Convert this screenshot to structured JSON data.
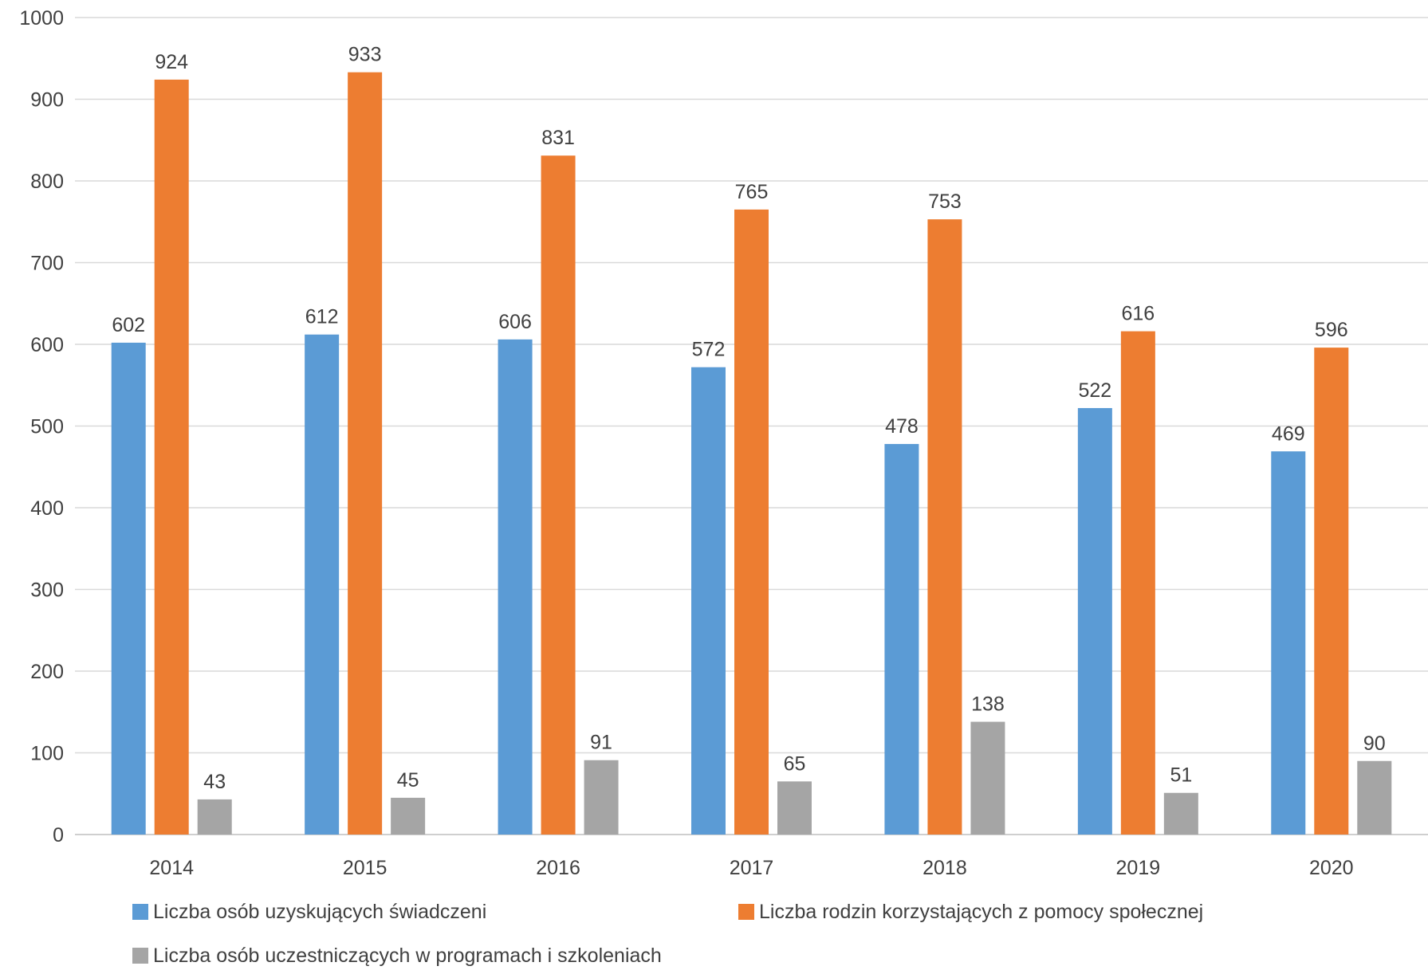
{
  "chart_data": {
    "type": "bar",
    "title": "",
    "xlabel": "",
    "ylabel": "",
    "categories": [
      "2014",
      "2015",
      "2016",
      "2017",
      "2018",
      "2019",
      "2020"
    ],
    "series": [
      {
        "name": "Liczba osób uzyskujących świadczeni",
        "color": "#5B9BD5",
        "values": [
          602,
          612,
          606,
          572,
          478,
          522,
          469
        ]
      },
      {
        "name": "Liczba rodzin korzystających z pomocy społecznej",
        "color": "#ED7D31",
        "values": [
          924,
          933,
          831,
          765,
          753,
          616,
          596
        ]
      },
      {
        "name": "Liczba osób uczestniczących w programach i szkoleniach",
        "color": "#A5A5A5",
        "values": [
          43,
          45,
          91,
          65,
          138,
          51,
          90
        ]
      }
    ],
    "ylim": [
      0,
      1000
    ],
    "yticks": [
      "0",
      "100",
      "200",
      "300",
      "400",
      "500",
      "600",
      "700",
      "800",
      "900",
      "1000"
    ],
    "grid": true,
    "data_labels": true,
    "legend_position": "bottom"
  }
}
